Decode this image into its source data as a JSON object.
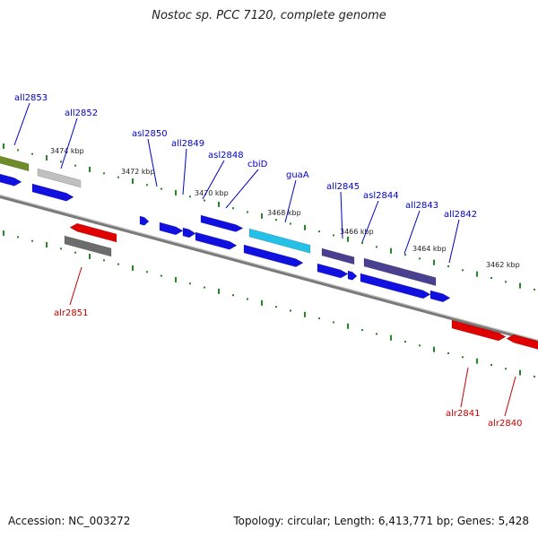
{
  "title": "Nostoc sp. PCC 7120, complete genome",
  "footer": {
    "accession": "Accession: NC_003272",
    "summary": "Topology: circular; Length: 6,413,771 bp; Genes: 5,428"
  },
  "colors": {
    "backbone": "#7a7a7a",
    "tick": "#1e8c1e",
    "cds_blue": "#1010e0",
    "cds_red": "#e00000",
    "cds_gray": "#6c6c6c",
    "cds_lightgray": "#c0c0c0",
    "cds_olive": "#6e8c28",
    "cds_cyan": "#25c0e8",
    "cds_slate": "#4a4090"
  },
  "scale_labels": [
    "3474 kbp",
    "3472 kbp",
    "3470 kbp",
    "3468 kbp",
    "3466 kbp",
    "3464 kbp",
    "3462 kbp"
  ],
  "gene_labels": [
    {
      "name": "all2853",
      "strand": "minus"
    },
    {
      "name": "all2852",
      "strand": "minus"
    },
    {
      "name": "asl2850",
      "strand": "minus"
    },
    {
      "name": "all2849",
      "strand": "minus"
    },
    {
      "name": "asl2848",
      "strand": "minus"
    },
    {
      "name": "cbiD",
      "strand": "minus"
    },
    {
      "name": "guaA",
      "strand": "minus"
    },
    {
      "name": "all2845",
      "strand": "minus"
    },
    {
      "name": "asl2844",
      "strand": "minus"
    },
    {
      "name": "all2843",
      "strand": "minus"
    },
    {
      "name": "all2842",
      "strand": "minus"
    },
    {
      "name": "alr2851",
      "strand": "plus"
    },
    {
      "name": "alr2841",
      "strand": "plus"
    },
    {
      "name": "alr2840",
      "strand": "plus"
    }
  ]
}
